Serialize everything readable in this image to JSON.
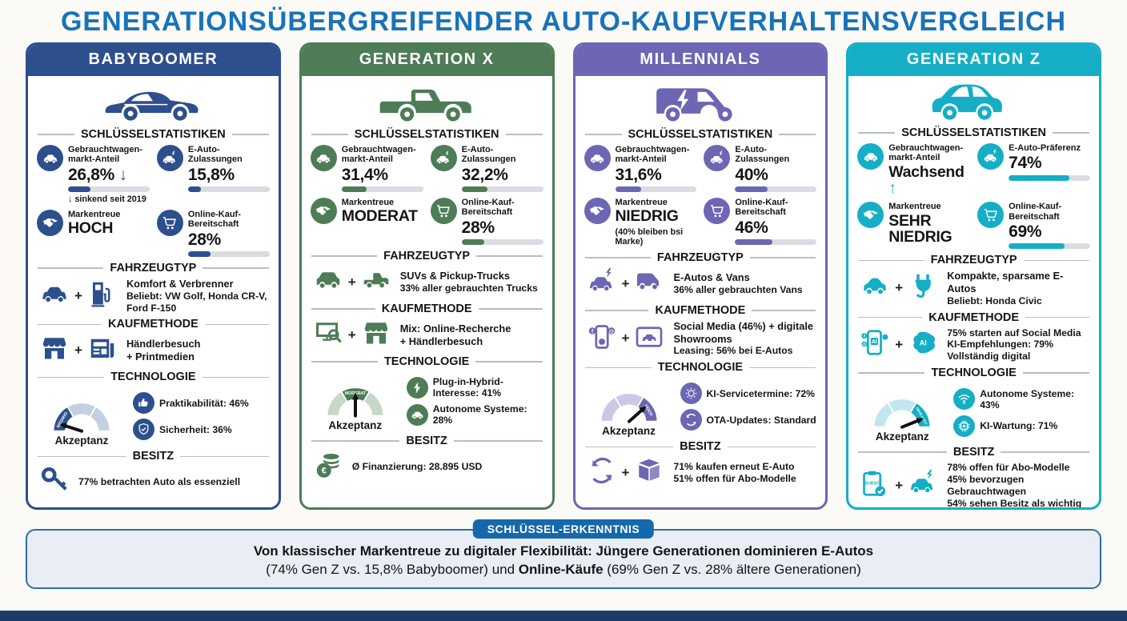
{
  "title": "GENERATIONSÜBERGREIFENDER AUTO-KAUFVERHALTENSVERGLEICH",
  "sections": {
    "stats": "SCHLÜSSELSTATISTIKEN",
    "vehicle": "FAHRZEUGTYP",
    "purchase": "KAUFMETHODE",
    "tech": "TECHNOLOGIE",
    "ownership": "BESITZ",
    "gauge_caption": "Akzeptanz"
  },
  "misc": {
    "plus": "+",
    "ai": "AI",
    "subsc": "SUBSC",
    "social_f": "f",
    "social_at": "@",
    "euro": "€"
  },
  "columns": [
    {
      "id": "babyboomer",
      "name": "BABYBOOMER",
      "color": "#2d4f8e",
      "color_light": "#c5cfe4",
      "hero_icon": "hero-classic",
      "stats": [
        {
          "icon": "car",
          "label": "Gebrauchtwagen-markt-Anteil",
          "value": "26,8%",
          "arrow": "↓",
          "bar": 27,
          "note": "↓ sinkend seit 2019"
        },
        {
          "icon": "e-car",
          "label": "E-Auto-Zulassungen",
          "value": "15,8%",
          "bar": 16
        },
        {
          "icon": "handshake",
          "label": "Markentreue",
          "value": "HOCH",
          "big": true
        },
        {
          "icon": "cart",
          "label": "Online-Kauf-Bereitschaft",
          "value": "28%",
          "bar": 28
        }
      ],
      "vehicle": {
        "icons": [
          "car",
          "fuel-pump"
        ],
        "lines": [
          {
            "text": "Komfort & Verbrenner",
            "bold": true
          },
          {
            "text": "Beliebt: VW Golf, Honda CR-V, Ford F-150",
            "bold": false
          }
        ]
      },
      "purchase": {
        "icons": [
          "store",
          "newspaper"
        ],
        "lines": [
          {
            "text": "Händlerbesuch",
            "bold": true
          },
          {
            "text": "+ Printmedien",
            "bold": true
          }
        ]
      },
      "tech": {
        "gauge_label": "NIEDRIG",
        "gauge_segment": 0,
        "needle_deg": 198,
        "items": [
          {
            "icon": "thumb-up",
            "text": "Praktikabilität: 46%"
          },
          {
            "icon": "shield-check",
            "text": "Sicherheit: 36%"
          }
        ]
      },
      "ownership": {
        "icons": [
          "key"
        ],
        "lines": [
          {
            "text": "77% betrachten Auto als essenziell",
            "bold": false
          }
        ]
      }
    },
    {
      "id": "generation-x",
      "name": "GENERATION X",
      "color": "#4d7c57",
      "color_light": "#c9d7c9",
      "hero_icon": "hero-pickup",
      "stats": [
        {
          "icon": "car",
          "label": "Gebrauchtwagen-markt-Anteil",
          "value": "31,4%",
          "bar": 31
        },
        {
          "icon": "e-car",
          "label": "E-Auto-Zulassungen",
          "value": "32,2%",
          "bar": 32
        },
        {
          "icon": "handshake",
          "label": "Markentreue",
          "value": "MODERAT",
          "big": true
        },
        {
          "icon": "cart",
          "label": "Online-Kauf-Bereitschaft",
          "value": "28%",
          "bar": 28
        }
      ],
      "vehicle": {
        "icons": [
          "suv",
          "pickup"
        ],
        "lines": [
          {
            "text": "SUVs & Pickup-Trucks",
            "bold": true
          },
          {
            "text": "33% aller gebrauchten Trucks",
            "bold": false
          }
        ]
      },
      "purchase": {
        "icons": [
          "monitor-search",
          "store"
        ],
        "lines": [
          {
            "text": "Mix: Online-Recherche",
            "bold": true
          },
          {
            "text": "+ Händlerbesuch",
            "bold": true
          }
        ]
      },
      "tech": {
        "gauge_label": "MODERAT",
        "gauge_segment": 1,
        "needle_deg": 270,
        "items": [
          {
            "icon": "bolt",
            "text": "Plug-in-Hybrid-Interesse: 41%"
          },
          {
            "icon": "car",
            "text": "Autonome Systeme: 28%"
          }
        ]
      },
      "ownership": {
        "icons": [
          "coins"
        ],
        "lines": [
          {
            "text": "Ø Finanzierung: 28.895 USD",
            "bold": false
          }
        ]
      }
    },
    {
      "id": "millennials",
      "name": "MILLENNIALS",
      "color": "#6c66b4",
      "color_light": "#cbc7e6",
      "hero_icon": "hero-van",
      "stats": [
        {
          "icon": "car",
          "label": "Gebrauchtwagen-markt-Anteil",
          "value": "31,6%",
          "bar": 32
        },
        {
          "icon": "e-car",
          "label": "E-Auto-Zulassungen",
          "value": "40%",
          "bar": 40
        },
        {
          "icon": "handshake",
          "label": "Markentreue",
          "value": "NIEDRIG",
          "big": true,
          "note": "(40% bleiben bsi Marke)"
        },
        {
          "icon": "cart",
          "label": "Online-Kauf-Bereitschaft",
          "value": "46%",
          "bar": 46
        }
      ],
      "vehicle": {
        "icons": [
          "e-car",
          "van"
        ],
        "lines": [
          {
            "text": "E-Autos & Vans",
            "bold": true
          },
          {
            "text": "36% aller gebrauchten Vans",
            "bold": false
          }
        ]
      },
      "purchase": {
        "icons": [
          "phone-social",
          "tablet-car"
        ],
        "lines": [
          {
            "text": "Social Media (46%) + digitale Showrooms",
            "bold": true
          },
          {
            "text": "Leasing: 56% bei E-Autos",
            "bold": false
          }
        ]
      },
      "tech": {
        "gauge_label": "HOCH",
        "gauge_segment": 2,
        "needle_deg": 318,
        "items": [
          {
            "icon": "gear-dots",
            "text": "KI-Servicetermine: 72%"
          },
          {
            "icon": "refresh",
            "text": "OTA-Updates: Standard"
          }
        ]
      },
      "ownership": {
        "icons": [
          "refresh",
          "box"
        ],
        "lines": [
          {
            "text": "71% kaufen erneut E-Auto",
            "bold": false
          },
          {
            "text": "51% offen für Abo-Modelle",
            "bold": false
          }
        ]
      }
    },
    {
      "id": "generation-z",
      "name": "GENERATION Z",
      "color": "#15aec6",
      "color_light": "#c2e6ef",
      "hero_icon": "hero-compact",
      "stats": [
        {
          "icon": "car",
          "label": "Gebrauchtwagen-markt-Anteil",
          "value": "Wachsend",
          "arrow": "↑",
          "big": true
        },
        {
          "icon": "e-car",
          "label": "E-Auto-Präferenz",
          "value": "74%",
          "bar": 74
        },
        {
          "icon": "handshake",
          "label": "Markentreue",
          "value": "SEHR NIEDRIG",
          "big": true
        },
        {
          "icon": "cart",
          "label": "Online-Kauf-Bereitschaft",
          "value": "69%",
          "bar": 69
        }
      ],
      "vehicle": {
        "icons": [
          "compact-car",
          "plug"
        ],
        "lines": [
          {
            "text": "Kompakte, sparsame E-Autos",
            "bold": true
          },
          {
            "text": "Beliebt: Honda Civic",
            "bold": false
          }
        ]
      },
      "purchase": {
        "icons": [
          "phone-ai",
          "brain-ai"
        ],
        "lines": [
          {
            "text": "75% starten auf Social Media",
            "bold": false
          },
          {
            "text": "KI-Empfehlungen: 79%",
            "bold": false
          },
          {
            "text": "Vollständig digital",
            "bold": false
          }
        ]
      },
      "tech": {
        "gauge_label": "SEHR HOCH",
        "gauge_segment": 2,
        "needle_deg": 338,
        "items": [
          {
            "icon": "wifi",
            "text": "Autonome Systeme: 43%"
          },
          {
            "icon": "chip",
            "text": "KI-Wartung: 71%"
          }
        ]
      },
      "ownership": {
        "icons": [
          "clipboard-subsc",
          "e-car"
        ],
        "lines": [
          {
            "text": "78% offen für Abo-Modelle",
            "bold": false
          },
          {
            "text": "45% bevorzugen Gebrauchtwagen",
            "bold": false
          },
          {
            "text": "54% sehen Besitz als wichtig",
            "bold": false
          }
        ]
      }
    }
  ],
  "insight": {
    "badge": "SCHLÜSSEL-ERKENNTNIS",
    "line1": "Von klassischer Markentreue zu digitaler Flexibilität: Jüngere Generationen dominieren E-Autos",
    "line2_pre": "(74% Gen Z vs. 15,8% Babyboomer) und ",
    "line2_bold": "Online-Käufe",
    "line2_post": " (69% Gen Z vs. 28% ältere Generationen)"
  }
}
